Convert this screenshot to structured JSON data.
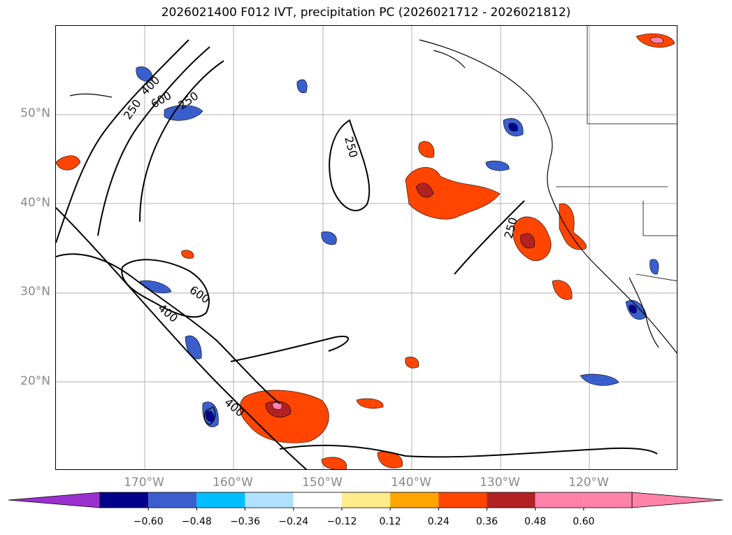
{
  "title": "2026021400 F012 IVT, precipitation PC (2026021712 - 2026021812)",
  "lat_labels": [
    "50°N",
    "40°N",
    "30°N",
    "20°N"
  ],
  "lon_labels": [
    "170°W",
    "160°W",
    "150°W",
    "140°W",
    "130°W",
    "120°W"
  ],
  "contour_labels": [
    "250",
    "400",
    "600",
    "250",
    "600",
    "400",
    "250",
    "250",
    "400"
  ],
  "colorbar": {
    "levels": [
      -0.72,
      -0.6,
      -0.48,
      -0.36,
      -0.24,
      -0.12,
      0.12,
      0.24,
      0.36,
      0.48,
      0.6,
      0.72
    ],
    "tick_labels": [
      "−0.60",
      "−0.48",
      "−0.36",
      "−0.24",
      "−0.12",
      "0.12",
      "0.24",
      "0.36",
      "0.48",
      "0.60"
    ],
    "colors": [
      "#9b30d0",
      "#00008b",
      "#3a5fcd",
      "#00bfff",
      "#b0e2ff",
      "#ffffff",
      "#ffec8b",
      "#ffa500",
      "#ff4500",
      "#b22222",
      "#ff82ab",
      "#ff82ab"
    ],
    "extend": "both"
  },
  "colors": {
    "contour": "#000000",
    "grid": "#b0b0b0",
    "coast": "#000000"
  }
}
